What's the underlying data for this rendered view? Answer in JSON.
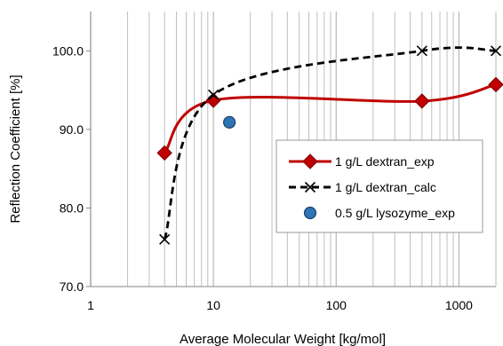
{
  "chart_data": {
    "type": "scatter",
    "title": "",
    "xlabel": "Average Molecular Weight [kg/mol]",
    "ylabel": "Reflection Coefficient [%]",
    "x_scale": "log",
    "xlim": [
      1,
      2000
    ],
    "ylim": [
      70,
      105
    ],
    "x_ticks": [
      1,
      10,
      100,
      1000
    ],
    "x_tick_labels": [
      "1",
      "10",
      "100",
      "1000"
    ],
    "y_ticks": [
      70,
      80,
      90,
      100
    ],
    "y_tick_labels": [
      "70.0",
      "80.0",
      "90.0",
      "100.0"
    ],
    "grid": "vertical log minor and major gridlines",
    "legend_position": "right",
    "series": [
      {
        "name": "1 g/L dextran_exp",
        "color": "#c00000",
        "marker": "diamond",
        "line": "solid smooth",
        "points": [
          [
            4,
            87.0
          ],
          [
            10,
            93.7
          ],
          [
            500,
            93.6
          ],
          [
            2000,
            95.7
          ]
        ]
      },
      {
        "name": "1 g/L dextran_calc",
        "color": "#000000",
        "marker": "x",
        "line": "dashed smooth",
        "points": [
          [
            4,
            76.0
          ],
          [
            10,
            94.4
          ],
          [
            500,
            100.0
          ],
          [
            2000,
            100.0
          ]
        ]
      },
      {
        "name": "0.5 g/L lysozyme_exp",
        "color": "#2e75b6",
        "marker": "circle",
        "line": "none",
        "points": [
          [
            13.5,
            90.9
          ]
        ]
      }
    ]
  }
}
